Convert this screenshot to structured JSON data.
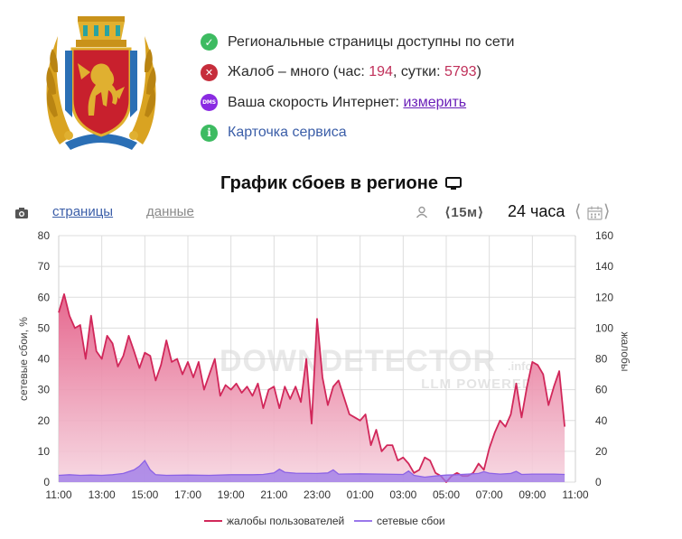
{
  "status": {
    "item1": {
      "text": "Региональные страницы доступны по сети"
    },
    "item2": {
      "prefix": "Жалоб – много (час: ",
      "hour_count": "194",
      "middle": ", сутки: ",
      "day_count": "5793",
      "suffix": ")"
    },
    "item3": {
      "prefix": "Ваша скорость Интернет: ",
      "link": "измерить",
      "badge": "DMS"
    },
    "item4": {
      "link": "Карточка сервиса"
    }
  },
  "chart_header": {
    "title": "График сбоев в регионе"
  },
  "toolbar": {
    "tab_pages": "страницы",
    "tab_data": "данные",
    "interval": "⟨15м⟩",
    "range": "24 часа",
    "prev": "⟨",
    "next": "⟩"
  },
  "colors": {
    "complaints": "#d1275a",
    "network": "#9a77ea",
    "grid": "#dddddd"
  },
  "chart_data": {
    "type": "area",
    "x_ticks": [
      "11:00",
      "13:00",
      "15:00",
      "17:00",
      "19:00",
      "21:00",
      "23:00",
      "01:00",
      "03:00",
      "05:00",
      "07:00",
      "09:00",
      "11:00"
    ],
    "x_range_hours": [
      0,
      24
    ],
    "y_left_label": "сетевые сбои, %",
    "y_left_ticks": [
      "0",
      "10",
      "20",
      "30",
      "40",
      "50",
      "60",
      "70",
      "80"
    ],
    "y_left_range": [
      0,
      80
    ],
    "y_right_label": "жалобы",
    "y_right_ticks": [
      "0",
      "20",
      "40",
      "60",
      "80",
      "100",
      "120",
      "140",
      "160"
    ],
    "y_right_range": [
      0,
      160
    ],
    "watermark_main": "DOWNDETECTOR",
    "watermark_sub": "LLM POWERED",
    "watermark_tld": ".info",
    "legend": {
      "complaints": "жалобы пользователей",
      "network": "сетевые сбои"
    },
    "series": [
      {
        "name": "жалобы пользователей",
        "axis": "right",
        "points": [
          [
            0,
            110
          ],
          [
            0.25,
            122
          ],
          [
            0.5,
            108
          ],
          [
            0.75,
            100
          ],
          [
            1.0,
            102
          ],
          [
            1.25,
            80
          ],
          [
            1.5,
            108
          ],
          [
            1.75,
            85
          ],
          [
            2.0,
            80
          ],
          [
            2.25,
            95
          ],
          [
            2.5,
            90
          ],
          [
            2.75,
            75
          ],
          [
            3.0,
            82
          ],
          [
            3.25,
            95
          ],
          [
            3.5,
            85
          ],
          [
            3.75,
            74
          ],
          [
            4.0,
            84
          ],
          [
            4.25,
            82
          ],
          [
            4.5,
            66
          ],
          [
            4.75,
            76
          ],
          [
            5.0,
            92
          ],
          [
            5.25,
            78
          ],
          [
            5.5,
            80
          ],
          [
            5.75,
            70
          ],
          [
            6.0,
            78
          ],
          [
            6.25,
            68
          ],
          [
            6.5,
            78
          ],
          [
            6.75,
            60
          ],
          [
            7.0,
            70
          ],
          [
            7.25,
            80
          ],
          [
            7.5,
            56
          ],
          [
            7.75,
            63
          ],
          [
            8.0,
            60
          ],
          [
            8.25,
            64
          ],
          [
            8.5,
            58
          ],
          [
            8.75,
            62
          ],
          [
            9.0,
            56
          ],
          [
            9.25,
            64
          ],
          [
            9.5,
            48
          ],
          [
            9.75,
            60
          ],
          [
            10.0,
            62
          ],
          [
            10.25,
            48
          ],
          [
            10.5,
            62
          ],
          [
            10.75,
            54
          ],
          [
            11.0,
            62
          ],
          [
            11.25,
            52
          ],
          [
            11.5,
            80
          ],
          [
            11.75,
            38
          ],
          [
            12.0,
            106
          ],
          [
            12.25,
            68
          ],
          [
            12.5,
            50
          ],
          [
            12.75,
            62
          ],
          [
            13.0,
            66
          ],
          [
            13.25,
            55
          ],
          [
            13.5,
            44
          ],
          [
            13.75,
            42
          ],
          [
            14.0,
            40
          ],
          [
            14.25,
            44
          ],
          [
            14.5,
            24
          ],
          [
            14.75,
            34
          ],
          [
            15.0,
            20
          ],
          [
            15.25,
            24
          ],
          [
            15.5,
            24
          ],
          [
            15.75,
            14
          ],
          [
            16.0,
            16
          ],
          [
            16.25,
            12
          ],
          [
            16.5,
            6
          ],
          [
            16.75,
            8
          ],
          [
            17.0,
            16
          ],
          [
            17.25,
            14
          ],
          [
            17.5,
            6
          ],
          [
            17.75,
            4
          ],
          [
            18.0,
            0
          ],
          [
            18.25,
            4
          ],
          [
            18.5,
            6
          ],
          [
            18.75,
            4
          ],
          [
            19.0,
            4
          ],
          [
            19.25,
            6
          ],
          [
            19.5,
            12
          ],
          [
            19.75,
            8
          ],
          [
            20.0,
            22
          ],
          [
            20.25,
            32
          ],
          [
            20.5,
            40
          ],
          [
            20.75,
            36
          ],
          [
            21.0,
            44
          ],
          [
            21.25,
            64
          ],
          [
            21.5,
            42
          ],
          [
            21.75,
            62
          ],
          [
            22.0,
            78
          ],
          [
            22.25,
            76
          ],
          [
            22.5,
            70
          ],
          [
            22.75,
            50
          ],
          [
            23.0,
            62
          ],
          [
            23.25,
            72
          ],
          [
            23.5,
            36
          ]
        ]
      },
      {
        "name": "сетевые сбои",
        "axis": "left",
        "points": [
          [
            0,
            2.2
          ],
          [
            0.5,
            2.4
          ],
          [
            1.0,
            2.2
          ],
          [
            1.5,
            2.3
          ],
          [
            2.0,
            2.2
          ],
          [
            2.5,
            2.4
          ],
          [
            3.0,
            2.8
          ],
          [
            3.5,
            4.0
          ],
          [
            3.75,
            5.2
          ],
          [
            4.0,
            7.0
          ],
          [
            4.25,
            4.0
          ],
          [
            4.5,
            2.4
          ],
          [
            5.0,
            2.2
          ],
          [
            6.0,
            2.3
          ],
          [
            7.0,
            2.2
          ],
          [
            8.0,
            2.4
          ],
          [
            9.0,
            2.4
          ],
          [
            9.5,
            2.5
          ],
          [
            10.0,
            3.0
          ],
          [
            10.25,
            4.2
          ],
          [
            10.5,
            3.2
          ],
          [
            11.0,
            2.9
          ],
          [
            12.0,
            2.8
          ],
          [
            12.5,
            3.0
          ],
          [
            12.75,
            4.0
          ],
          [
            13.0,
            2.6
          ],
          [
            14.0,
            2.7
          ],
          [
            15.0,
            2.6
          ],
          [
            16.0,
            2.5
          ],
          [
            16.25,
            3.6
          ],
          [
            16.5,
            2.2
          ],
          [
            17.0,
            1.6
          ],
          [
            17.5,
            2.0
          ],
          [
            18.0,
            2.3
          ],
          [
            18.5,
            2.4
          ],
          [
            19.0,
            2.6
          ],
          [
            19.5,
            2.8
          ],
          [
            19.75,
            3.4
          ],
          [
            20.0,
            2.9
          ],
          [
            20.5,
            2.6
          ],
          [
            21.0,
            2.8
          ],
          [
            21.25,
            3.5
          ],
          [
            21.5,
            2.5
          ],
          [
            22.0,
            2.6
          ],
          [
            23.0,
            2.6
          ],
          [
            23.5,
            2.5
          ]
        ]
      }
    ]
  }
}
